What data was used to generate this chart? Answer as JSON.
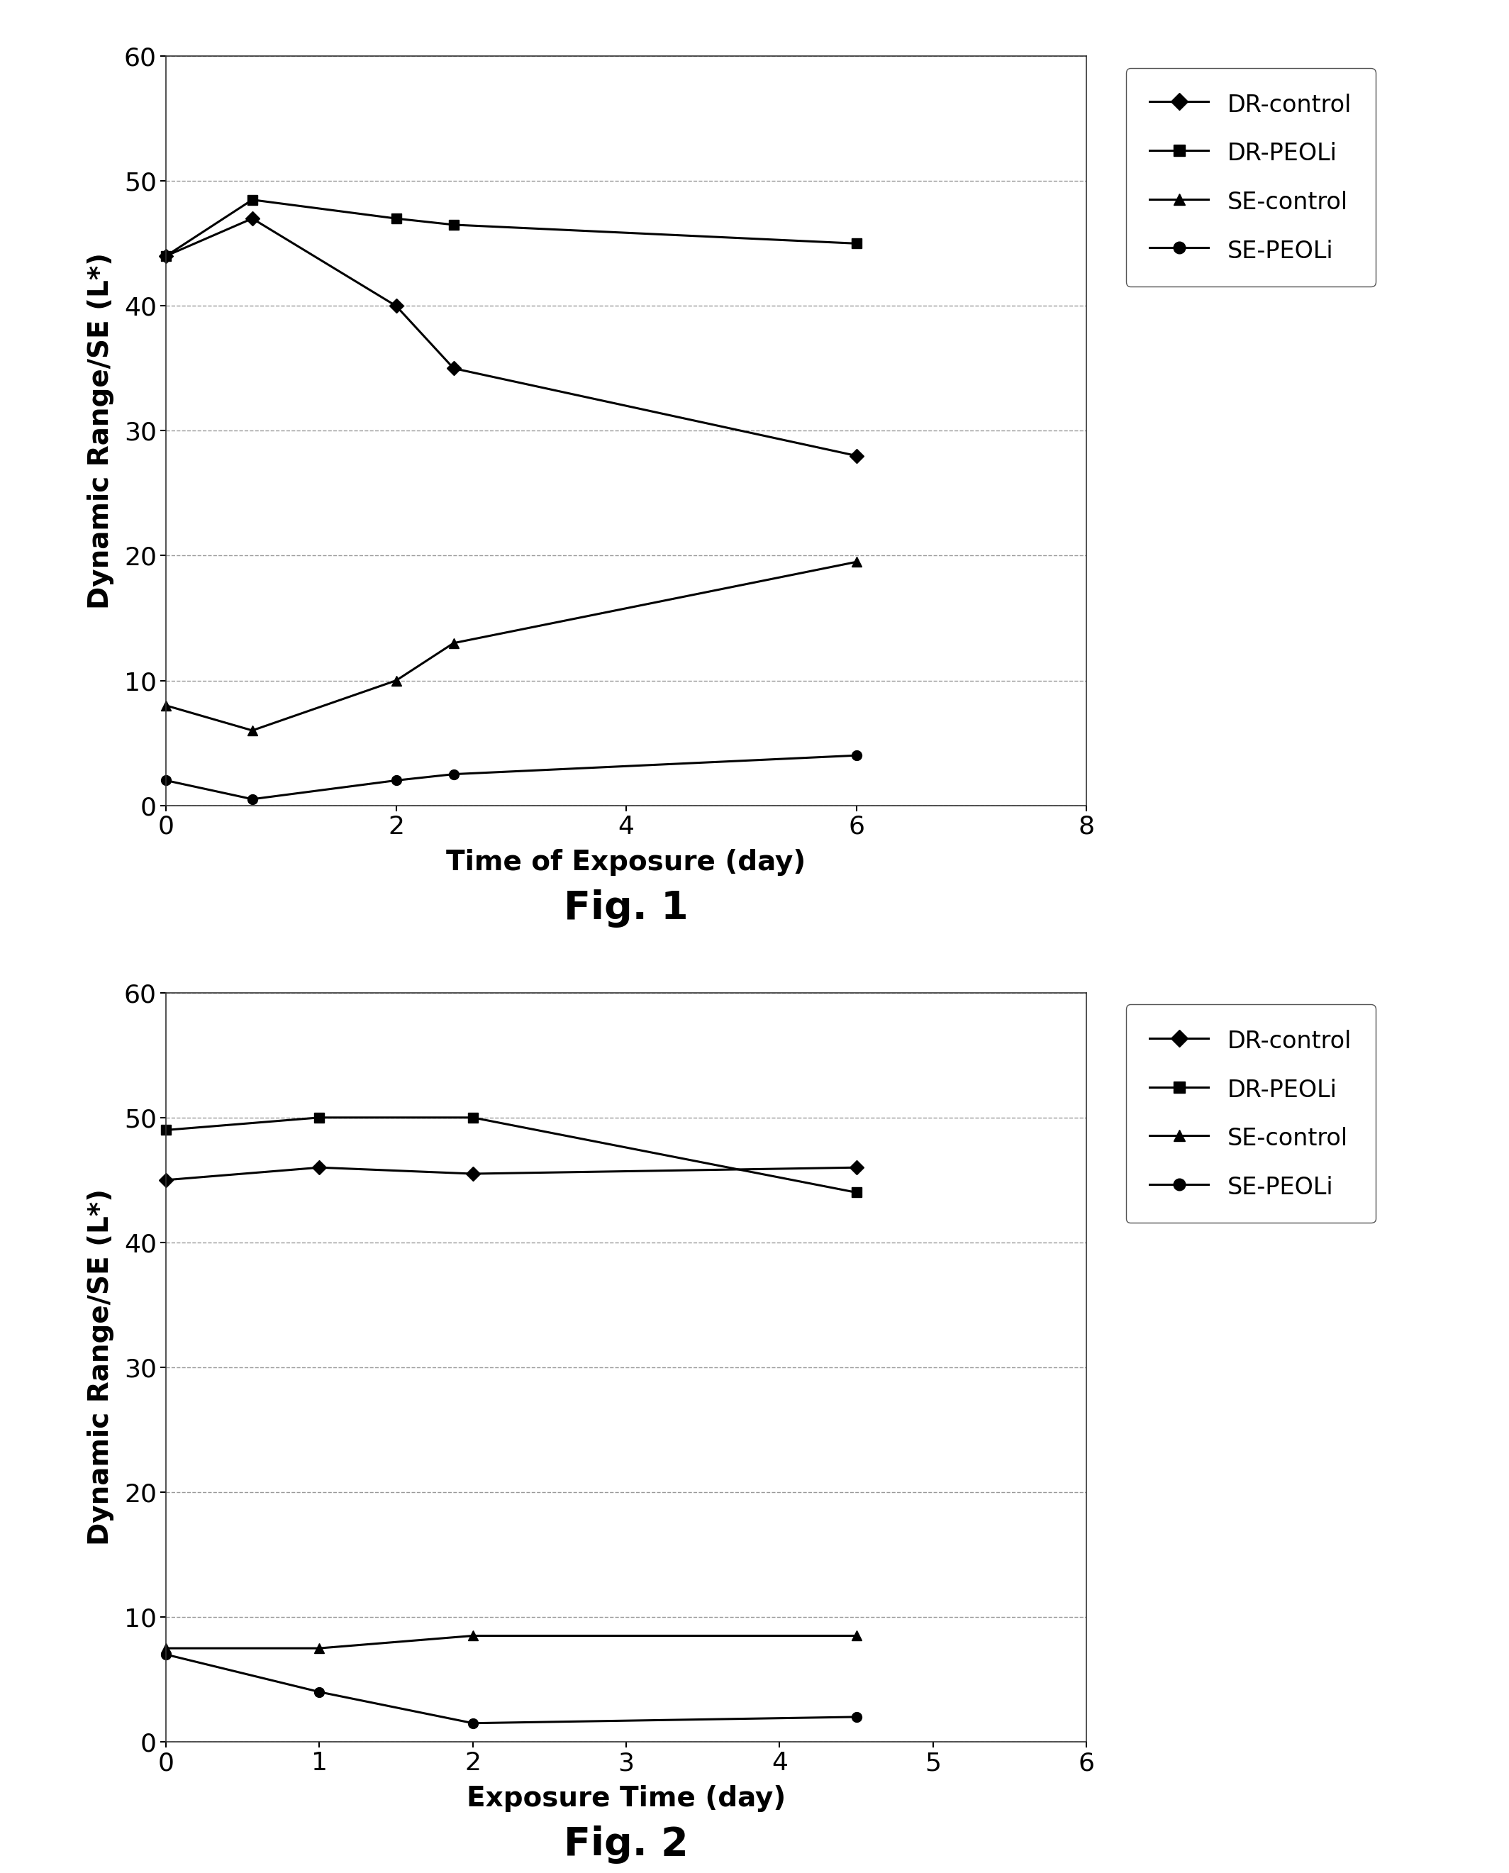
{
  "fig1": {
    "title": "Fig. 1",
    "xlabel": "Time of Exposure (day)",
    "ylabel": "Dynamic Range/SE (L*)",
    "xlim": [
      0,
      8
    ],
    "ylim": [
      0,
      60
    ],
    "xticks": [
      0,
      2,
      4,
      6,
      8
    ],
    "yticks": [
      0,
      10,
      20,
      30,
      40,
      50,
      60
    ],
    "series": {
      "DR-control": {
        "x": [
          0,
          0.75,
          2,
          2.5,
          6
        ],
        "y": [
          44,
          47,
          40,
          35,
          28
        ],
        "marker": "D"
      },
      "DR-PEOLi": {
        "x": [
          0,
          0.75,
          2,
          2.5,
          6
        ],
        "y": [
          44,
          48.5,
          47,
          46.5,
          45
        ],
        "marker": "s"
      },
      "SE-control": {
        "x": [
          0,
          0.75,
          2,
          2.5,
          6
        ],
        "y": [
          8,
          6,
          10,
          13,
          19.5
        ],
        "marker": "^"
      },
      "SE-PEOLi": {
        "x": [
          0,
          0.75,
          2,
          2.5,
          6
        ],
        "y": [
          2,
          0.5,
          2,
          2.5,
          4
        ],
        "marker": "o"
      }
    }
  },
  "fig2": {
    "title": "Fig. 2",
    "xlabel": "Exposure Time (day)",
    "ylabel": "Dynamic Range/SE (L*)",
    "xlim": [
      0,
      6
    ],
    "ylim": [
      0,
      60
    ],
    "xticks": [
      0,
      1,
      2,
      3,
      4,
      5,
      6
    ],
    "yticks": [
      0,
      10,
      20,
      30,
      40,
      50,
      60
    ],
    "series": {
      "DR-control": {
        "x": [
          0,
          1,
          2,
          4.5
        ],
        "y": [
          45,
          46,
          45.5,
          46
        ],
        "marker": "D"
      },
      "DR-PEOLi": {
        "x": [
          0,
          1,
          2,
          4.5
        ],
        "y": [
          49,
          50,
          50,
          44
        ],
        "marker": "s"
      },
      "SE-control": {
        "x": [
          0,
          1,
          2,
          4.5
        ],
        "y": [
          7.5,
          7.5,
          8.5,
          8.5
        ],
        "marker": "^"
      },
      "SE-PEOLi": {
        "x": [
          0,
          1,
          2,
          4.5
        ],
        "y": [
          7,
          4,
          1.5,
          2
        ],
        "marker": "o"
      }
    }
  },
  "legend_labels": [
    "DR-control",
    "DR-PEOLi",
    "SE-control",
    "SE-PEOLi"
  ],
  "line_color": "#000000",
  "marker_size": 10,
  "line_width": 2.2,
  "fig_bg": "#ffffff",
  "plot_bg": "#ffffff",
  "grid_color": "#999999",
  "fig1_label_fontsize": 32,
  "fig2_label_fontsize": 32,
  "xlabel_fontsize": 28,
  "ylabel_fontsize": 28,
  "tick_fontsize": 26,
  "legend_fontsize": 24,
  "fignum_fontsize": 40
}
